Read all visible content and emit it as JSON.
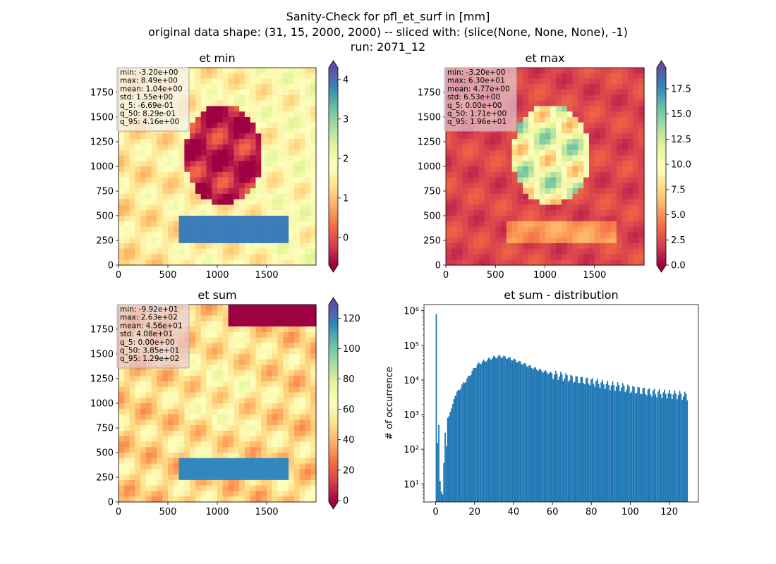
{
  "figure": {
    "suptitle_lines": [
      "Sanity-Check for pfl_et_surf in [mm]",
      "original data shape: (31, 15, 2000, 2000) -- sliced with: (slice(None, None, None), -1)",
      "run: 2071_12"
    ]
  },
  "chart_data": [
    {
      "type": "heatmap",
      "title": "et min",
      "colormap": "Spectral",
      "xlim": [
        0,
        2000
      ],
      "ylim": [
        0,
        2000
      ],
      "xticks": [
        0,
        500,
        1000,
        1500
      ],
      "yticks": [
        0,
        250,
        500,
        750,
        1000,
        1250,
        1500,
        1750
      ],
      "colorbar": {
        "min": -0.7,
        "max": 4.3,
        "ticks": [
          0,
          1,
          2,
          3,
          4
        ],
        "extend": "both"
      },
      "stats_box": [
        "min: -3.20e+00",
        "max: 8.49e+00",
        "mean: 1.04e+00",
        "std: 1.55e+00",
        "q_5: -6.69e-01",
        "q_50: 8.29e-01",
        "q_95: 4.16e+00"
      ]
    },
    {
      "type": "heatmap",
      "title": "et max",
      "colormap": "Spectral",
      "xlim": [
        0,
        2000
      ],
      "ylim": [
        0,
        2000
      ],
      "xticks": [
        0,
        500,
        1000,
        1500
      ],
      "yticks": [
        0,
        250,
        500,
        750,
        1000,
        1250,
        1500,
        1750
      ],
      "colorbar": {
        "min": 0,
        "max": 19.6,
        "ticks": [
          0.0,
          2.5,
          5.0,
          7.5,
          10.0,
          12.5,
          15.0,
          17.5
        ],
        "extend": "both"
      },
      "stats_box": [
        "min: -3.20e+00",
        "max: 6.30e+01",
        "mean: 4.77e+00",
        "std: 6.53e+00",
        "q_5: 0.00e+00",
        "q_50: 1.71e+00",
        "q_95: 1.96e+01"
      ]
    },
    {
      "type": "heatmap",
      "title": "et sum",
      "colormap": "Spectral",
      "xlim": [
        0,
        2000
      ],
      "ylim": [
        0,
        2000
      ],
      "xticks": [
        0,
        500,
        1000,
        1500
      ],
      "yticks": [
        0,
        250,
        500,
        750,
        1000,
        1250,
        1500,
        1750
      ],
      "colorbar": {
        "min": -1,
        "max": 129,
        "ticks": [
          0,
          20,
          40,
          60,
          80,
          100,
          120
        ],
        "extend": "both"
      },
      "stats_box": [
        "min: -9.92e+01",
        "max: 2.63e+02",
        "mean: 4.56e+01",
        "std: 4.08e+01",
        "q_5: 0.00e+00",
        "q_50: 3.85e+01",
        "q_95: 1.29e+02"
      ]
    },
    {
      "type": "bar",
      "title": "et sum - distribution",
      "xlabel": "",
      "ylabel": "# of occurrence",
      "yscale": "log",
      "color": "#1f77b4",
      "xlim": [
        -6,
        135
      ],
      "ylim": [
        3,
        1500000
      ],
      "xticks": [
        0,
        20,
        40,
        60,
        80,
        100,
        120
      ],
      "yticks": [
        {
          "value": 10,
          "label": "10¹"
        },
        {
          "value": 100,
          "label": "10²"
        },
        {
          "value": 1000,
          "label": "10³"
        },
        {
          "value": 10000,
          "label": "10⁴"
        },
        {
          "value": 100000,
          "label": "10⁵"
        },
        {
          "value": 1000000,
          "label": "10⁶"
        }
      ],
      "bin_width": 0.65,
      "bins": [
        {
          "x": 0.0,
          "count": 800000
        },
        {
          "x": 0.65,
          "count": 150
        },
        {
          "x": 1.3,
          "count": 500
        },
        {
          "x": 1.95,
          "count": 12
        },
        {
          "x": 2.6,
          "count": 6
        },
        {
          "x": 3.25,
          "count": 5
        },
        {
          "x": 3.9,
          "count": 40
        },
        {
          "x": 4.55,
          "count": 300
        },
        {
          "x": 5.2,
          "count": 120
        },
        {
          "x": 5.85,
          "count": 800
        },
        {
          "x": 6.5,
          "count": 900
        },
        {
          "x": 7.15,
          "count": 1200
        },
        {
          "x": 7.8,
          "count": 1500
        },
        {
          "x": 8.45,
          "count": 2000
        },
        {
          "x": 9.1,
          "count": 2800
        },
        {
          "x": 9.75,
          "count": 3500
        }
      ],
      "profile": [
        {
          "x": 10,
          "count": 3800
        },
        {
          "x": 12,
          "count": 5500
        },
        {
          "x": 14,
          "count": 8000
        },
        {
          "x": 16,
          "count": 11000
        },
        {
          "x": 18,
          "count": 16000
        },
        {
          "x": 20,
          "count": 24000
        },
        {
          "x": 22,
          "count": 30000
        },
        {
          "x": 25,
          "count": 36000
        },
        {
          "x": 28,
          "count": 42000
        },
        {
          "x": 30,
          "count": 46000
        },
        {
          "x": 33,
          "count": 48000
        },
        {
          "x": 36,
          "count": 45000
        },
        {
          "x": 40,
          "count": 38000
        },
        {
          "x": 45,
          "count": 29000
        },
        {
          "x": 50,
          "count": 22000
        },
        {
          "x": 55,
          "count": 18000
        },
        {
          "x": 60,
          "count": 15000
        },
        {
          "x": 65,
          "count": 13000
        },
        {
          "x": 70,
          "count": 11000
        },
        {
          "x": 75,
          "count": 10000
        },
        {
          "x": 80,
          "count": 9000
        },
        {
          "x": 85,
          "count": 8000
        },
        {
          "x": 90,
          "count": 7000
        },
        {
          "x": 95,
          "count": 6500
        },
        {
          "x": 100,
          "count": 5500
        },
        {
          "x": 105,
          "count": 5000
        },
        {
          "x": 110,
          "count": 4500
        },
        {
          "x": 115,
          "count": 4200
        },
        {
          "x": 120,
          "count": 4000
        },
        {
          "x": 125,
          "count": 3800
        },
        {
          "x": 129,
          "count": 3500
        }
      ],
      "profile_range": [
        10,
        129.5
      ]
    }
  ]
}
